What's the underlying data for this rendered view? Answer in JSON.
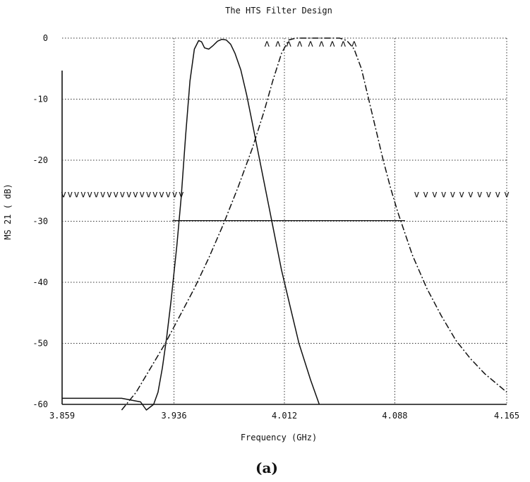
{
  "chart_data": {
    "type": "line",
    "title": "The HTS Filter Design",
    "xlabel": "Frequency (GHz)",
    "ylabel": "MS 21 ( dB)",
    "caption": "(a)",
    "xlim": [
      3.859,
      4.165
    ],
    "ylim": [
      -60,
      0
    ],
    "x_ticks": [
      "3.859",
      "3.936",
      "4.012",
      "4.088",
      "4.165"
    ],
    "y_ticks": [
      "0",
      "-10",
      "-20",
      "-30",
      "-40",
      "-50",
      "-60"
    ],
    "x_tick_values": [
      3.859,
      3.936,
      4.012,
      4.088,
      4.165
    ],
    "y_tick_values": [
      0,
      -10,
      -20,
      -30,
      -40,
      -50,
      -60
    ],
    "grid": true,
    "series": [
      {
        "style": "solid",
        "x": [
          3.859,
          3.9,
          3.913,
          3.917,
          3.922,
          3.925,
          3.928,
          3.931,
          3.934,
          3.938,
          3.941,
          3.944,
          3.947,
          3.95,
          3.953,
          3.955,
          3.957,
          3.96,
          3.963,
          3.966,
          3.969,
          3.972,
          3.975,
          3.978,
          3.982,
          3.986,
          3.99,
          3.995,
          4.0,
          4.005,
          4.01,
          4.016,
          4.022,
          4.03,
          4.036
        ],
        "y": [
          -59,
          -59,
          -59.6,
          -61,
          -60,
          -58,
          -54,
          -49,
          -43,
          -34,
          -26,
          -16,
          -7,
          -1.8,
          -0.4,
          -0.6,
          -1.6,
          -1.8,
          -1.2,
          -0.5,
          -0.2,
          -0.3,
          -1.0,
          -2.5,
          -5.2,
          -9.3,
          -14,
          -20,
          -26,
          -32,
          -38,
          -44,
          -50,
          -56,
          -60
        ]
      },
      {
        "style": "dash-dot",
        "x": [
          3.9,
          3.91,
          3.92,
          3.93,
          3.94,
          3.95,
          3.96,
          3.97,
          3.98,
          3.99,
          3.998,
          4.004,
          4.01,
          4.015,
          4.02,
          4.03,
          4.04,
          4.05,
          4.055,
          4.06,
          4.065,
          4.07,
          4.075,
          4.08,
          4.085,
          4.09,
          4.095,
          4.1,
          4.11,
          4.12,
          4.13,
          4.14,
          4.15,
          4.165
        ],
        "y": [
          -61,
          -58,
          -54,
          -50,
          -45.5,
          -41,
          -36,
          -30.5,
          -24.5,
          -18,
          -12,
          -7,
          -2.5,
          -0.3,
          0,
          0,
          0,
          0,
          -0.4,
          -1.8,
          -5,
          -10,
          -15,
          -20,
          -24.5,
          -28.5,
          -32,
          -35.5,
          -41,
          -45.5,
          -49.5,
          -52.5,
          -55,
          -58
        ]
      }
    ],
    "hlines": [
      {
        "y": -29.9,
        "x": [
          3.935,
          4.095
        ],
        "style": "solid"
      }
    ],
    "mask_marks": [
      {
        "glyph": "V",
        "y": -25.5,
        "x_from": 3.86,
        "x_to": 3.941,
        "count": 19
      },
      {
        "glyph": "V",
        "y": -25.5,
        "x_from": 4.103,
        "x_to": 4.165,
        "count": 11
      },
      {
        "glyph": "A",
        "y": -0.8,
        "x_from": 4.0,
        "x_to": 4.06,
        "count": 9
      }
    ]
  }
}
